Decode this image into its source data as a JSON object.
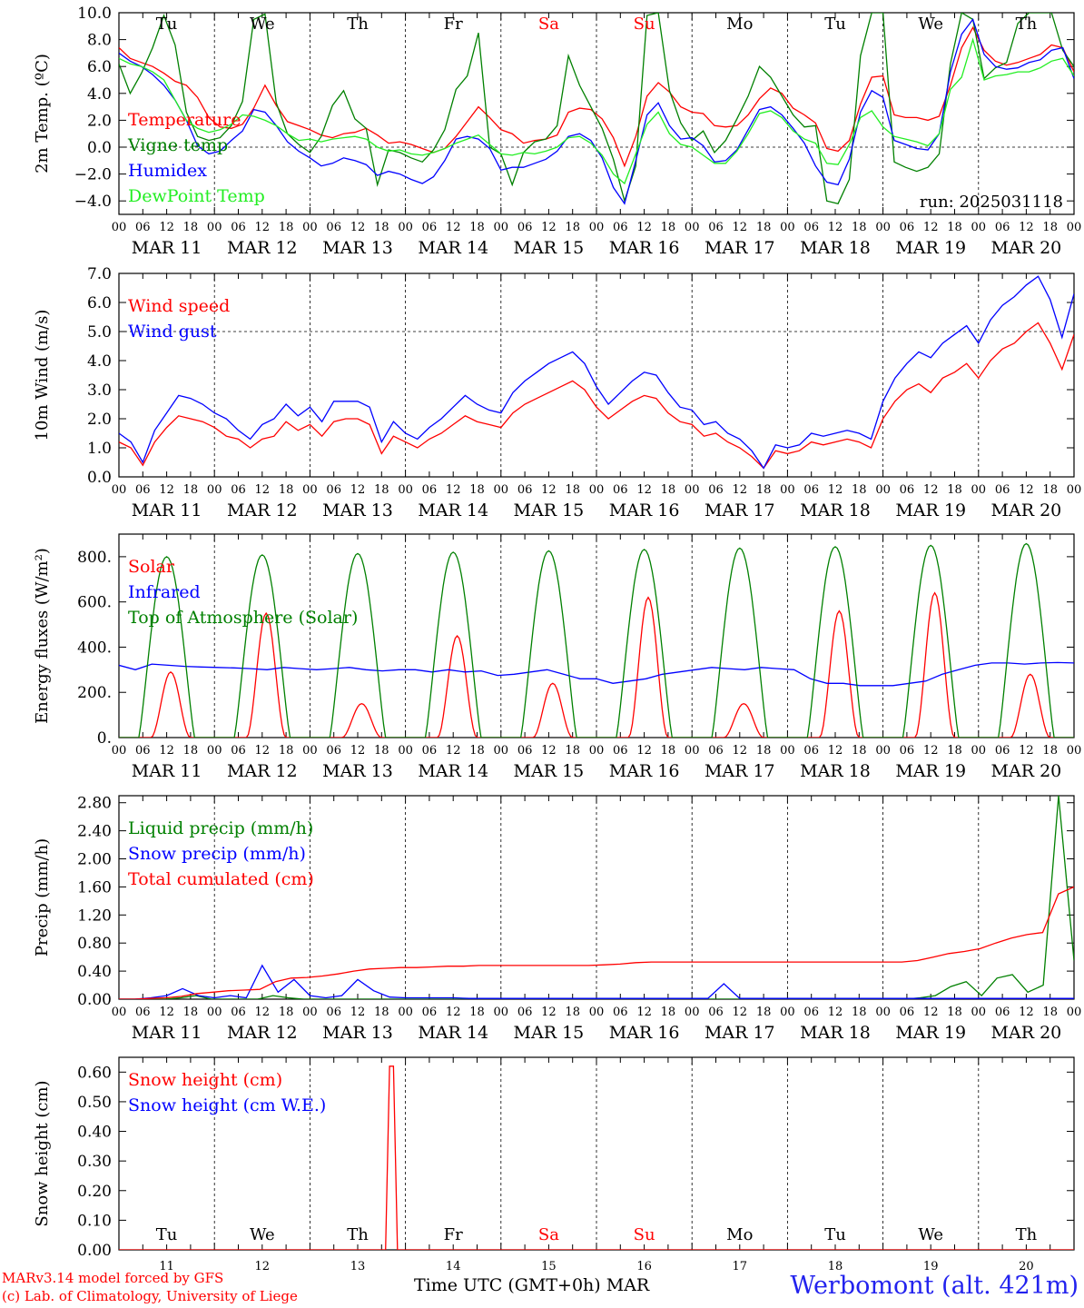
{
  "chart_data": [
    {
      "type": "line",
      "id": "temp",
      "ylabel": "2m Temp. (ºC)",
      "ylim": [
        -5.0,
        10.0
      ],
      "yticks": [
        10.0,
        8.0,
        6.0,
        4.0,
        2.0,
        0.0,
        -2.0,
        -4.0
      ],
      "ytick_labels": [
        "10.0",
        "8.0",
        "6.0",
        "4.0",
        "2.0",
        "0.0",
        "−2.0",
        "−4.0"
      ],
      "ref_line": 0.0,
      "annotation": "run: 2025031118",
      "series": [
        {
          "name": "Temperature",
          "color": "#ff0000",
          "values": [
            7.4,
            6.6,
            6.3,
            6.0,
            5.5,
            4.9,
            4.6,
            3.7,
            2.2,
            1.5,
            1.4,
            1.7,
            2.9,
            4.6,
            3.1,
            1.9,
            1.6,
            1.3,
            0.9,
            0.7,
            1.0,
            1.1,
            1.4,
            0.9,
            0.3,
            0.4,
            0.2,
            -0.1,
            -0.4,
            -0.1,
            0.8,
            1.9,
            3.0,
            2.2,
            1.3,
            1.0,
            0.3,
            0.5,
            0.6,
            0.9,
            2.6,
            2.9,
            2.8,
            2.1,
            0.7,
            -1.4,
            0.8,
            3.8,
            4.8,
            4.1,
            3.0,
            2.6,
            2.5,
            1.6,
            1.5,
            1.6,
            2.4,
            3.6,
            4.4,
            4.0,
            2.9,
            2.4,
            1.8,
            -0.1,
            -0.3,
            0.5,
            3.2,
            5.2,
            5.3,
            2.4,
            2.2,
            2.2,
            2.0,
            2.3,
            4.6,
            7.4,
            8.9,
            7.2,
            6.4,
            6.1,
            6.3,
            6.6,
            6.9,
            7.6,
            7.4,
            5.6
          ]
        },
        {
          "name": "Vigne temp",
          "color": "#008000",
          "values": [
            6.2,
            4.0,
            5.5,
            7.4,
            9.8,
            7.6,
            2.6,
            0.8,
            0.5,
            0.7,
            1.6,
            3.4,
            9.5,
            9.9,
            3.3,
            1.0,
            0.2,
            -0.4,
            0.8,
            3.1,
            4.2,
            2.1,
            1.4,
            -2.8,
            -0.2,
            -0.4,
            -0.8,
            -1.1,
            -0.2,
            1.3,
            4.3,
            5.3,
            8.5,
            0.0,
            -0.5,
            -2.8,
            -0.4,
            0.4,
            0.6,
            1.6,
            6.8,
            4.6,
            3.0,
            1.4,
            -0.9,
            -4.0,
            -1.4,
            9.8,
            10.0,
            4.2,
            1.8,
            0.5,
            1.2,
            -0.4,
            0.5,
            2.1,
            3.8,
            6.0,
            5.2,
            3.8,
            2.4,
            1.5,
            1.6,
            -4.0,
            -4.2,
            -2.4,
            6.8,
            10.0,
            10.0,
            -1.1,
            -1.5,
            -1.8,
            -1.5,
            -0.5,
            6.2,
            10.0,
            9.5,
            5.1,
            5.9,
            6.3,
            9.2,
            10.0,
            10.0,
            10.0,
            7.2,
            6.0
          ]
        },
        {
          "name": "Humidex",
          "color": "#0000ff",
          "values": [
            7.0,
            6.4,
            6.0,
            5.4,
            4.6,
            3.5,
            2.0,
            0.1,
            -0.5,
            -0.3,
            0.5,
            1.2,
            2.8,
            2.6,
            1.6,
            0.4,
            -0.3,
            -0.8,
            -1.4,
            -1.2,
            -0.8,
            -1.0,
            -1.3,
            -2.1,
            -1.8,
            -2.0,
            -2.4,
            -2.7,
            -2.2,
            -1.0,
            0.6,
            0.8,
            0.6,
            -0.1,
            -1.7,
            -1.5,
            -1.5,
            -1.2,
            -0.9,
            -0.3,
            0.8,
            1.0,
            0.5,
            -0.8,
            -3.0,
            -4.2,
            -1.0,
            2.4,
            3.3,
            1.6,
            0.6,
            0.7,
            0.1,
            -1.1,
            -1.0,
            -0.2,
            1.3,
            2.8,
            3.0,
            2.4,
            1.4,
            0.3,
            -1.4,
            -2.6,
            -2.8,
            -0.9,
            2.6,
            4.2,
            3.7,
            0.5,
            0.2,
            -0.1,
            -0.2,
            1.0,
            5.6,
            8.4,
            9.5,
            6.9,
            6.0,
            5.8,
            5.9,
            6.3,
            6.5,
            7.2,
            7.4,
            5.1
          ]
        },
        {
          "name": "DewPoint Temp",
          "color": "#22ee22",
          "values": [
            6.6,
            6.2,
            6.0,
            5.6,
            5.0,
            3.5,
            2.0,
            1.4,
            1.1,
            1.3,
            1.7,
            2.4,
            2.3,
            2.0,
            1.6,
            1.0,
            0.5,
            0.6,
            0.4,
            0.6,
            0.7,
            0.8,
            0.6,
            0.0,
            -0.3,
            -0.2,
            -0.5,
            -0.6,
            -0.4,
            -0.1,
            0.3,
            0.6,
            0.9,
            0.2,
            -0.5,
            -0.6,
            -0.4,
            -0.5,
            -0.3,
            0.0,
            0.7,
            0.8,
            0.3,
            -0.6,
            -2.0,
            -2.7,
            -0.5,
            1.7,
            2.6,
            1.0,
            0.2,
            0.0,
            -0.6,
            -1.2,
            -1.2,
            -0.3,
            1.0,
            2.5,
            2.7,
            2.2,
            1.2,
            0.6,
            0.3,
            -1.2,
            -1.3,
            0.2,
            2.2,
            2.7,
            1.5,
            0.8,
            0.6,
            0.4,
            0.1,
            1.0,
            4.3,
            5.2,
            8.0,
            5.0,
            5.3,
            5.4,
            5.6,
            5.6,
            5.9,
            6.4,
            6.6,
            5.3
          ]
        }
      ]
    },
    {
      "type": "line",
      "id": "wind",
      "ylabel": "10m Wind (m/s)",
      "ylim": [
        0.0,
        7.0
      ],
      "yticks": [
        7.0,
        6.0,
        5.0,
        4.0,
        3.0,
        2.0,
        1.0,
        0.0
      ],
      "ytick_labels": [
        "7.0",
        "6.0",
        "5.0",
        "4.0",
        "3.0",
        "2.0",
        "1.0",
        "0.0"
      ],
      "ref_line": 5.0,
      "series": [
        {
          "name": "Wind speed",
          "color": "#ff0000",
          "values": [
            1.2,
            1.0,
            0.4,
            1.2,
            1.7,
            2.1,
            2.0,
            1.9,
            1.7,
            1.4,
            1.3,
            1.0,
            1.3,
            1.4,
            1.9,
            1.6,
            1.8,
            1.4,
            1.9,
            2.0,
            2.0,
            1.8,
            0.8,
            1.4,
            1.2,
            1.0,
            1.3,
            1.5,
            1.8,
            2.1,
            1.9,
            1.8,
            1.7,
            2.2,
            2.5,
            2.7,
            2.9,
            3.1,
            3.3,
            3.0,
            2.4,
            2.0,
            2.3,
            2.6,
            2.8,
            2.7,
            2.2,
            1.9,
            1.8,
            1.4,
            1.5,
            1.2,
            1.0,
            0.7,
            0.3,
            0.9,
            0.8,
            0.9,
            1.2,
            1.1,
            1.2,
            1.3,
            1.2,
            1.0,
            2.0,
            2.6,
            3.0,
            3.2,
            2.9,
            3.4,
            3.6,
            3.9,
            3.4,
            4.0,
            4.4,
            4.6,
            5.0,
            5.3,
            4.6,
            3.7,
            4.9
          ]
        },
        {
          "name": "Wind gust",
          "color": "#0000ff",
          "values": [
            1.5,
            1.2,
            0.5,
            1.6,
            2.2,
            2.8,
            2.7,
            2.5,
            2.2,
            2.0,
            1.6,
            1.3,
            1.8,
            2.0,
            2.5,
            2.1,
            2.4,
            1.9,
            2.6,
            2.6,
            2.6,
            2.4,
            1.2,
            1.9,
            1.5,
            1.3,
            1.7,
            2.0,
            2.4,
            2.8,
            2.5,
            2.3,
            2.2,
            2.9,
            3.3,
            3.6,
            3.9,
            4.1,
            4.3,
            3.9,
            3.1,
            2.5,
            2.9,
            3.3,
            3.6,
            3.5,
            2.9,
            2.4,
            2.3,
            1.8,
            1.9,
            1.5,
            1.3,
            0.9,
            0.3,
            1.1,
            1.0,
            1.1,
            1.5,
            1.4,
            1.5,
            1.6,
            1.5,
            1.3,
            2.6,
            3.4,
            3.9,
            4.3,
            4.1,
            4.6,
            4.9,
            5.2,
            4.6,
            5.4,
            5.9,
            6.2,
            6.6,
            6.9,
            6.1,
            4.8,
            6.3
          ]
        }
      ]
    },
    {
      "type": "line",
      "id": "flux",
      "ylabel": "Energy fluxes (W/m²)",
      "ylim": [
        0,
        900
      ],
      "yticks": [
        800,
        600,
        400,
        200,
        0
      ],
      "ytick_labels": [
        "800.",
        "600.",
        "400.",
        "200.",
        "0."
      ],
      "series": [
        {
          "name": "Solar",
          "color": "#ff0000",
          "peaks": [
            {
              "hour": 13,
              "value": 290
            },
            {
              "hour": 37,
              "value": 550
            },
            {
              "hour": 61,
              "value": 150
            },
            {
              "hour": 85,
              "value": 450
            },
            {
              "hour": 109,
              "value": 240
            },
            {
              "hour": 133,
              "value": 620
            },
            {
              "hour": 157,
              "value": 150
            },
            {
              "hour": 181,
              "value": 560
            },
            {
              "hour": 205,
              "value": 640
            },
            {
              "hour": 229,
              "value": 280
            }
          ]
        },
        {
          "name": "Infrared",
          "color": "#0000ff",
          "values": [
            320,
            300,
            325,
            320,
            315,
            312,
            310,
            308,
            305,
            300,
            310,
            305,
            300,
            305,
            310,
            300,
            295,
            300,
            300,
            290,
            300,
            290,
            295,
            275,
            280,
            290,
            300,
            280,
            260,
            260,
            240,
            250,
            260,
            280,
            290,
            300,
            310,
            305,
            300,
            310,
            305,
            300,
            260,
            240,
            240,
            230,
            230,
            230,
            240,
            250,
            280,
            300,
            320,
            330,
            330,
            325,
            330,
            332,
            330
          ]
        },
        {
          "name": "Top of Atmosphere (Solar)",
          "color": "#008000",
          "peaks": [
            {
              "hour": 12,
              "value": 800
            },
            {
              "hour": 36,
              "value": 808
            },
            {
              "hour": 60,
              "value": 814
            },
            {
              "hour": 84,
              "value": 820
            },
            {
              "hour": 108,
              "value": 826
            },
            {
              "hour": 132,
              "value": 832
            },
            {
              "hour": 156,
              "value": 838
            },
            {
              "hour": 180,
              "value": 844
            },
            {
              "hour": 204,
              "value": 850
            },
            {
              "hour": 228,
              "value": 858
            }
          ]
        }
      ]
    },
    {
      "type": "line",
      "id": "precip",
      "ylabel": "Precip (mm/h)",
      "ylim": [
        0.0,
        2.9
      ],
      "yticks": [
        2.8,
        2.4,
        2.0,
        1.6,
        1.2,
        0.8,
        0.4,
        0.0
      ],
      "ytick_labels": [
        "2.80",
        "2.40",
        "2.00",
        "1.60",
        "1.20",
        "0.80",
        "0.40",
        "0.00"
      ],
      "series": [
        {
          "name": "Liquid precip (mm/h)",
          "color": "#008000",
          "values": [
            0,
            0,
            0,
            0,
            0.02,
            0.05,
            0,
            0,
            0,
            0,
            0.05,
            0.02,
            0,
            0,
            0,
            0,
            0,
            0,
            0,
            0,
            0,
            0,
            0,
            0,
            0,
            0,
            0,
            0,
            0,
            0,
            0,
            0,
            0,
            0,
            0,
            0,
            0,
            0,
            0,
            0,
            0,
            0,
            0,
            0,
            0,
            0,
            0,
            0,
            0,
            0,
            0,
            0,
            0.02,
            0.05,
            0.18,
            0.25,
            0.05,
            0.3,
            0.35,
            0.1,
            0.2,
            2.9,
            0.55
          ]
        },
        {
          "name": "Snow precip (mm/h)",
          "color": "#0000ff",
          "values": [
            0,
            0,
            0.02,
            0.05,
            0.15,
            0.05,
            0.02,
            0.05,
            0.02,
            0.48,
            0.1,
            0.28,
            0.05,
            0.02,
            0.05,
            0.28,
            0.12,
            0.03,
            0.02,
            0.02,
            0.02,
            0.02,
            0.01,
            0.01,
            0.01,
            0.01,
            0.01,
            0.01,
            0.01,
            0.01,
            0.01,
            0.01,
            0.01,
            0.01,
            0.01,
            0.01,
            0.01,
            0.01,
            0.22,
            0.01,
            0.01,
            0.01,
            0.01,
            0.01,
            0.01,
            0.01,
            0.01,
            0.01,
            0.01,
            0.01,
            0.01,
            0.01,
            0.01,
            0.01,
            0.01,
            0.01,
            0.01,
            0.01,
            0.01,
            0.01,
            0.01
          ]
        },
        {
          "name": "Total cumulated (cm)",
          "color": "#ff0000",
          "values": [
            0,
            0,
            0.01,
            0.02,
            0.04,
            0.08,
            0.1,
            0.12,
            0.13,
            0.14,
            0.25,
            0.3,
            0.31,
            0.33,
            0.36,
            0.4,
            0.43,
            0.44,
            0.45,
            0.45,
            0.46,
            0.47,
            0.47,
            0.48,
            0.48,
            0.48,
            0.48,
            0.48,
            0.48,
            0.48,
            0.48,
            0.49,
            0.5,
            0.52,
            0.53,
            0.53,
            0.53,
            0.53,
            0.53,
            0.53,
            0.53,
            0.53,
            0.53,
            0.53,
            0.53,
            0.53,
            0.53,
            0.53,
            0.53,
            0.53,
            0.53,
            0.55,
            0.6,
            0.65,
            0.68,
            0.72,
            0.8,
            0.87,
            0.92,
            0.95,
            1.5,
            1.6
          ]
        }
      ]
    },
    {
      "type": "line",
      "id": "snow",
      "ylabel": "Snow height (cm)",
      "ylim": [
        0.0,
        0.65
      ],
      "yticks": [
        0.6,
        0.5,
        0.4,
        0.3,
        0.2,
        0.1,
        0.0
      ],
      "ytick_labels": [
        "0.60",
        "0.50",
        "0.40",
        "0.30",
        "0.20",
        "0.10",
        "0.00"
      ],
      "series": [
        {
          "name": "Snow height (cm)",
          "color": "#ff0000",
          "spike": {
            "start_hour": 67,
            "peak_hours": [
              68,
              69
            ],
            "end_hour": 70,
            "value": 0.62
          }
        },
        {
          "name": "Snow height (cm W.E.)",
          "color": "#0000ff"
        }
      ]
    }
  ],
  "x_axis": {
    "hour_tick_labels": [
      "00",
      "06",
      "12",
      "18"
    ],
    "day_labels": [
      "MAR 11",
      "MAR 12",
      "MAR 13",
      "MAR 14",
      "MAR 15",
      "MAR 16",
      "MAR 17",
      "MAR 18",
      "MAR 19",
      "MAR 20"
    ],
    "end_hour_label": "00",
    "weekdays": [
      {
        "label": "Tu",
        "color": "#000000"
      },
      {
        "label": "We",
        "color": "#000000"
      },
      {
        "label": "Th",
        "color": "#000000"
      },
      {
        "label": "Fr",
        "color": "#000000"
      },
      {
        "label": "Sa",
        "color": "#ff0000"
      },
      {
        "label": "Su",
        "color": "#ff0000"
      },
      {
        "label": "Mo",
        "color": "#000000"
      },
      {
        "label": "Tu",
        "color": "#000000"
      },
      {
        "label": "We",
        "color": "#000000"
      },
      {
        "label": "Th",
        "color": "#000000"
      }
    ],
    "bottom_day_numbers": [
      "11",
      "12",
      "13",
      "14",
      "15",
      "16",
      "17",
      "18",
      "19",
      "20"
    ],
    "xlabel": "Time UTC (GMT+0h)",
    "month": "MAR"
  },
  "footer": {
    "model_credit": "MARv3.14 model forced by GFS",
    "lab_credit": "(c) Lab. of Climatology, University of Liege",
    "location": "Werbomont (alt. 421m)"
  }
}
